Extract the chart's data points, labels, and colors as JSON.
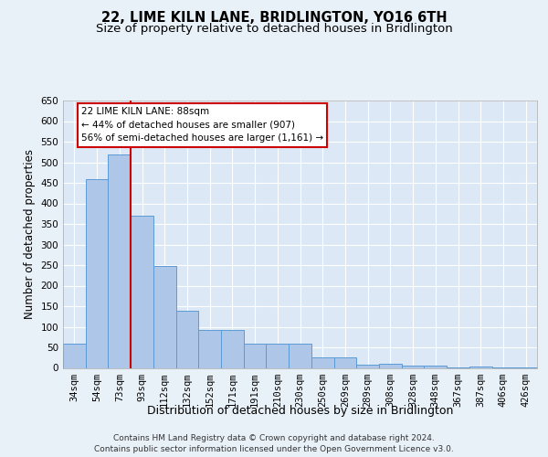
{
  "title": "22, LIME KILN LANE, BRIDLINGTON, YO16 6TH",
  "subtitle": "Size of property relative to detached houses in Bridlington",
  "xlabel": "Distribution of detached houses by size in Bridlington",
  "ylabel": "Number of detached properties",
  "categories": [
    "34sqm",
    "54sqm",
    "73sqm",
    "93sqm",
    "112sqm",
    "132sqm",
    "152sqm",
    "171sqm",
    "191sqm",
    "210sqm",
    "230sqm",
    "250sqm",
    "269sqm",
    "289sqm",
    "308sqm",
    "328sqm",
    "348sqm",
    "367sqm",
    "387sqm",
    "406sqm",
    "426sqm"
  ],
  "values": [
    60,
    458,
    520,
    370,
    248,
    140,
    93,
    93,
    60,
    58,
    58,
    26,
    25,
    8,
    10,
    5,
    6,
    2,
    3,
    2,
    2
  ],
  "bar_color": "#aec6e8",
  "bar_edge_color": "#5b9bd5",
  "redline_index": 3,
  "redline_label": "22 LIME KILN LANE: 88sqm",
  "pct_smaller": "44% of detached houses are smaller (907)",
  "pct_larger": "56% of semi-detached houses are larger (1,161)",
  "ylim": [
    0,
    650
  ],
  "yticks": [
    0,
    50,
    100,
    150,
    200,
    250,
    300,
    350,
    400,
    450,
    500,
    550,
    600,
    650
  ],
  "background_color": "#e8f0f8",
  "plot_bg_color": "#dce8f5",
  "footer": "Contains HM Land Registry data © Crown copyright and database right 2024.\nContains public sector information licensed under the Open Government Licence v3.0.",
  "title_fontsize": 10.5,
  "subtitle_fontsize": 9.5,
  "xlabel_fontsize": 9,
  "ylabel_fontsize": 8.5,
  "tick_fontsize": 7.5,
  "footer_fontsize": 6.5,
  "ann_fontsize": 7.5
}
